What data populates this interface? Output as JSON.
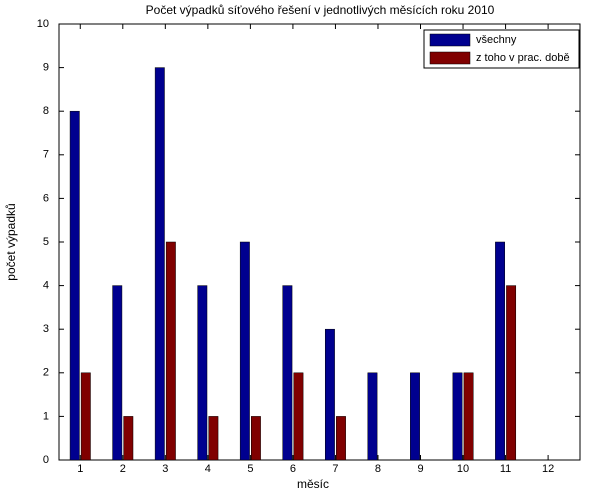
{
  "chart_data": {
    "type": "bar",
    "title": "Počet výpadků síťového řešení v jednotlivých měsících roku 2010",
    "x_label": "měsíc",
    "y_label": "počet výpadků",
    "x": [
      1,
      2,
      3,
      4,
      5,
      6,
      7,
      8,
      9,
      10,
      11,
      12
    ],
    "series": [
      {
        "name": "všechny",
        "color": "#00008f",
        "values": [
          8,
          4,
          9,
          4,
          5,
          4,
          3,
          2,
          2,
          2,
          5,
          0
        ]
      },
      {
        "name": "z toho v prac. době",
        "color": "#800000",
        "values": [
          2,
          1,
          5,
          1,
          1,
          2,
          1,
          0,
          0,
          2,
          4,
          0
        ]
      }
    ],
    "xlim": [
      0.5,
      12.75
    ],
    "xticks": [
      1,
      2,
      3,
      4,
      5,
      6,
      7,
      8,
      9,
      10,
      11,
      12
    ],
    "ylim": [
      0,
      10
    ],
    "yticks": [
      0,
      1,
      2,
      3,
      4,
      5,
      6,
      7,
      8,
      9,
      10
    ],
    "grid": false,
    "legend": "top-right"
  }
}
